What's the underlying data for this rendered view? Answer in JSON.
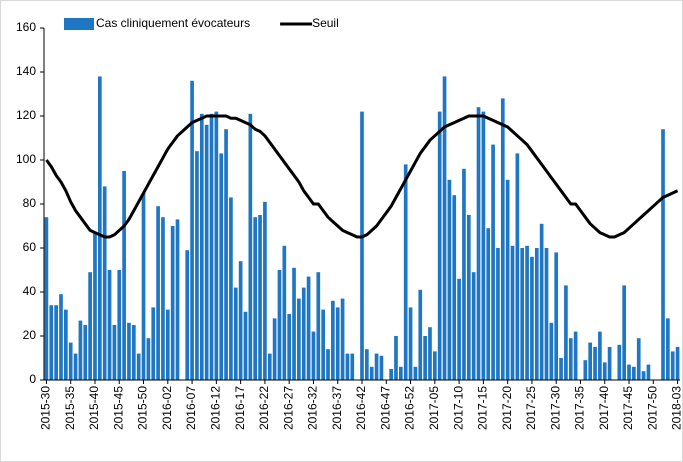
{
  "chart_data": {
    "type": "bar",
    "categories": [
      "2015-30",
      null,
      null,
      null,
      null,
      "2015-35",
      null,
      null,
      null,
      null,
      "2015-40",
      null,
      null,
      null,
      null,
      "2015-45",
      null,
      null,
      null,
      null,
      "2015-50",
      null,
      null,
      null,
      null,
      "2016-02",
      null,
      null,
      null,
      null,
      "2016-07",
      null,
      null,
      null,
      null,
      "2016-12",
      null,
      null,
      null,
      null,
      "2016-17",
      null,
      null,
      null,
      null,
      "2016-22",
      null,
      null,
      null,
      null,
      "2016-27",
      null,
      null,
      null,
      null,
      "2016-32",
      null,
      null,
      null,
      null,
      "2016-37",
      null,
      null,
      null,
      null,
      "2016-42",
      null,
      null,
      null,
      null,
      "2016-47",
      null,
      null,
      null,
      null,
      "2016-52",
      null,
      null,
      null,
      null,
      "2017-05",
      null,
      null,
      null,
      null,
      "2017-10",
      null,
      null,
      null,
      null,
      "2017-15",
      null,
      null,
      null,
      null,
      "2017-20",
      null,
      null,
      null,
      null,
      "2017-25",
      null,
      null,
      null,
      null,
      "2017-30",
      null,
      null,
      null,
      null,
      "2017-35",
      null,
      null,
      null,
      null,
      "2017-40",
      null,
      null,
      null,
      null,
      "2017-45",
      null,
      null,
      null,
      null,
      "2017-50",
      null,
      null,
      null,
      null,
      "2018-03"
    ],
    "series": [
      {
        "name": "Cas cliniquement évocateurs",
        "type": "bar",
        "color": "#1f77c4",
        "values": [
          74,
          34,
          34,
          39,
          32,
          17,
          12,
          27,
          25,
          49,
          67,
          138,
          88,
          50,
          25,
          50,
          95,
          26,
          25,
          12,
          85,
          19,
          33,
          79,
          74,
          32,
          70,
          73,
          null,
          59,
          136,
          104,
          121,
          116,
          121,
          122,
          103,
          114,
          83,
          42,
          54,
          31,
          121,
          74,
          75,
          81,
          12,
          28,
          50,
          61,
          30,
          51,
          37,
          42,
          47,
          22,
          49,
          32,
          14,
          36,
          33,
          37,
          12,
          12,
          null,
          122,
          14,
          6,
          12,
          11,
          null,
          5,
          20,
          6,
          98,
          33,
          6,
          41,
          20,
          24,
          13,
          122,
          138,
          91,
          84,
          46,
          96,
          75,
          49,
          124,
          122,
          69,
          107,
          60,
          128,
          91,
          61,
          103,
          60,
          61,
          56,
          60,
          71,
          60,
          26,
          58,
          10,
          43,
          19,
          22,
          null,
          9,
          17,
          15,
          22,
          8,
          15,
          null,
          16,
          43,
          7,
          6,
          19,
          4,
          7,
          null,
          null,
          114,
          28,
          13,
          15
        ]
      },
      {
        "name": "Seuil",
        "type": "line",
        "color": "#000000",
        "values": [
          100,
          97,
          93,
          90,
          86,
          81,
          77,
          74,
          71,
          68,
          67,
          66,
          65,
          65,
          66,
          68,
          70,
          73,
          77,
          81,
          85,
          89,
          93,
          97,
          101,
          105,
          108,
          111,
          113,
          115,
          117,
          118,
          119,
          120,
          120,
          120,
          120,
          120,
          119,
          119,
          118,
          117,
          116,
          114,
          113,
          111,
          108,
          105,
          102,
          99,
          96,
          93,
          90,
          86,
          83,
          80,
          80,
          77,
          74,
          72,
          70,
          68,
          67,
          66,
          65,
          65,
          66,
          68,
          70,
          73,
          76,
          79,
          83,
          87,
          91,
          95,
          99,
          103,
          106,
          109,
          111,
          113,
          115,
          116,
          117,
          118,
          119,
          120,
          120,
          120,
          120,
          119,
          118,
          117,
          116,
          115,
          113,
          111,
          109,
          107,
          104,
          101,
          98,
          95,
          92,
          89,
          86,
          83,
          80,
          80,
          77,
          74,
          71,
          69,
          67,
          66,
          65,
          65,
          66,
          67,
          69,
          71,
          73,
          75,
          77,
          79,
          81,
          83,
          84,
          85,
          86
        ]
      }
    ],
    "ylim": [
      0,
      160
    ],
    "yticks": [
      0,
      20,
      40,
      60,
      80,
      100,
      120,
      140,
      160
    ],
    "grid": false,
    "legend": "top"
  }
}
